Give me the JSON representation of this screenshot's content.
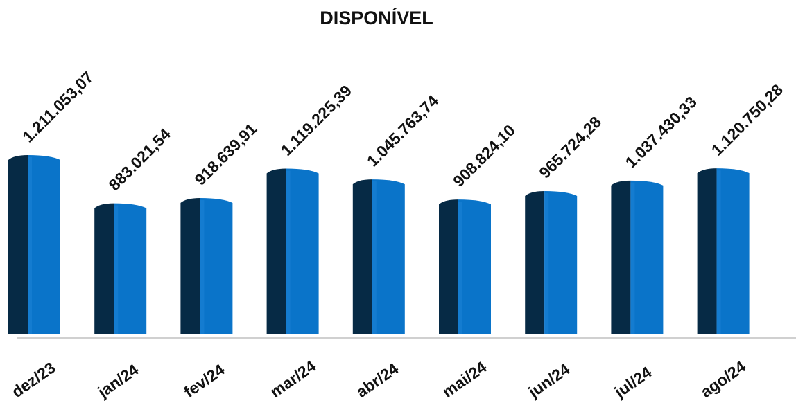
{
  "chart_data": {
    "type": "bar",
    "title": "DISPONÍVEL",
    "categories": [
      "dez/23",
      "jan/24",
      "fev/24",
      "mar/24",
      "abr/24",
      "mai/24",
      "jun/24",
      "jul/24",
      "ago/24"
    ],
    "values": [
      1211053.07,
      883021.54,
      918639.91,
      1119225.39,
      1045763.74,
      908824.1,
      965724.28,
      1037430.33,
      1120750.28
    ],
    "value_labels": [
      "1.211.053,07",
      "883.021,54",
      "918.639,91",
      "1.119.225,39",
      "1.045.763,74",
      "908.824,10",
      "965.724,28",
      "1.037.430,33",
      "1.120.750,28"
    ],
    "xlabel": "",
    "ylabel": "",
    "ylim": [
      0,
      1211053.07
    ],
    "grid": false,
    "legend": "none",
    "colors": {
      "bar_front": "#0a74c9",
      "bar_side": "#062a45",
      "bar_top": "#1b82d6",
      "axis": "#d0d0d0"
    }
  }
}
